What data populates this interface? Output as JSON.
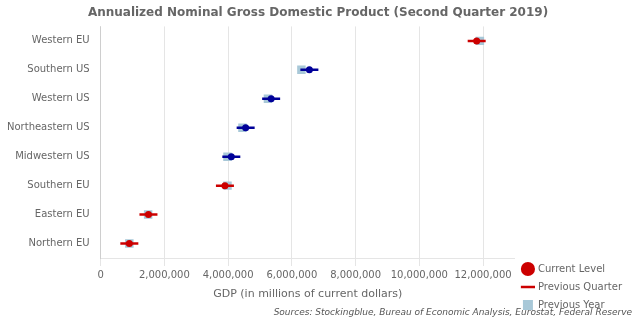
{
  "chart_data": {
    "type": "dot",
    "orientation": "horizontal",
    "title": "Annualized Nominal Gross Domestic Product (Second Quarter 2019)",
    "xlabel": "GDP (in millions of current dollars)",
    "annotations": [
      "Sources: Stockingblue, Bureau of Economic Analysis, Eurostat, Federal Reserve"
    ],
    "categories": [
      "Northern EU",
      "Eastern EU",
      "Southern EU",
      "Midwestern US",
      "Northeastern US",
      "Western US",
      "Southern US",
      "Western EU"
    ],
    "series": [
      {
        "name": "Current Level",
        "marker": "circle",
        "colors": [
          "#cc0000",
          "#cc0000",
          "#cc0000",
          "#000099",
          "#000099",
          "#000099",
          "#000099",
          "#cc0000"
        ],
        "values": [
          900000,
          1500000,
          3900000,
          4100000,
          4550000,
          5350000,
          6550000,
          11800000
        ]
      },
      {
        "name": "Previous Quarter",
        "marker": "line",
        "colors": [
          "#cc0000",
          "#cc0000",
          "#cc0000",
          "#000099",
          "#000099",
          "#000099",
          "#000099",
          "#cc0000"
        ],
        "values": [
          900000,
          1500000,
          3900000,
          4100000,
          4550000,
          5350000,
          6550000,
          11800000
        ]
      },
      {
        "name": "Previous Year",
        "marker": "square",
        "color": "#a8c8d8",
        "values": [
          900000,
          1490000,
          3980000,
          3980000,
          4450000,
          5250000,
          6300000,
          11900000
        ]
      }
    ],
    "xlim": [
      0,
      13000000
    ],
    "xticks": [
      0,
      {
        "value": 2000000,
        "label": "2,000,000"
      },
      {
        "value": 4000000,
        "label": "4,000,000"
      },
      {
        "value": 6000000,
        "label": "6,000,000"
      },
      {
        "value": 8000000,
        "label": "8,000,000"
      },
      {
        "value": 10000000,
        "label": "10,000,000"
      },
      {
        "value": 12000000,
        "label": "12,000,000"
      }
    ],
    "grid": "x",
    "legend": "lower right"
  }
}
